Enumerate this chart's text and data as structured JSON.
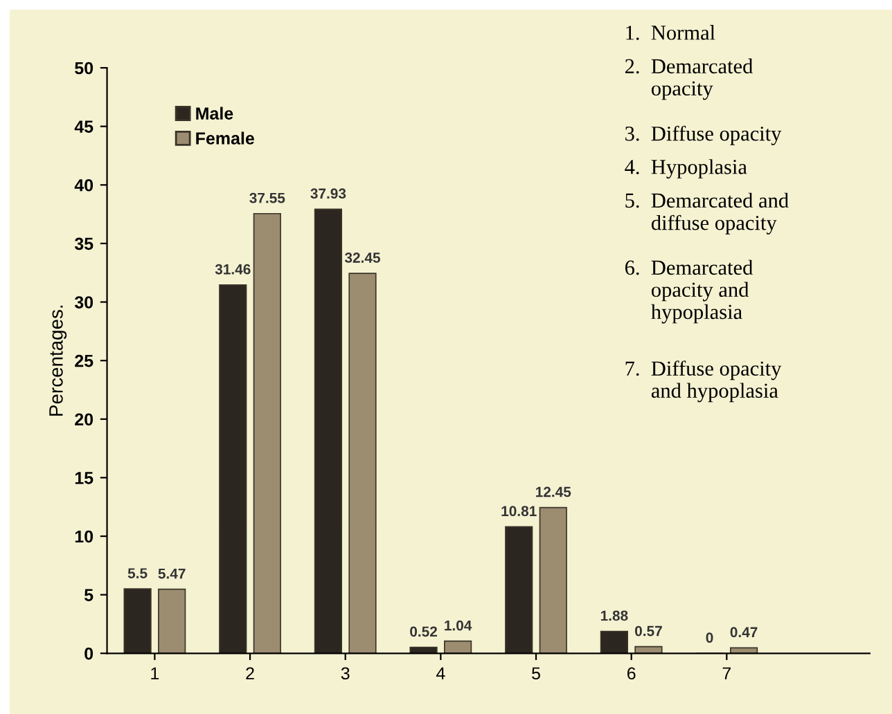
{
  "chart_data": {
    "type": "bar",
    "ylabel": "Percentages.",
    "categories": [
      "1",
      "2",
      "3",
      "4",
      "5",
      "6",
      "7"
    ],
    "series": [
      {
        "name": "Male",
        "color": "#2b2620",
        "values": [
          5.5,
          31.46,
          37.93,
          0.52,
          10.81,
          1.88,
          0
        ]
      },
      {
        "name": "Female",
        "color": "#9c8c70",
        "values": [
          5.47,
          37.55,
          32.45,
          1.04,
          12.45,
          0.57,
          0.47
        ]
      }
    ],
    "ylim": [
      0,
      50
    ],
    "yticks": [
      0,
      5,
      10,
      15,
      20,
      25,
      30,
      35,
      40,
      45,
      50
    ],
    "data_labels": true,
    "legend": "top left",
    "grid": false,
    "annotations": [
      "1.  Normal",
      "2.  Demarcated\n     opacity",
      "3.  Diffuse opacity",
      "4.  Hypoplasia",
      "5.  Demarcated and\n     diffuse opacity",
      "6.  Demarcated\n     opacity and\n     hypoplasia",
      "7.  Diffuse opacity\n     and hypoplasia"
    ]
  }
}
